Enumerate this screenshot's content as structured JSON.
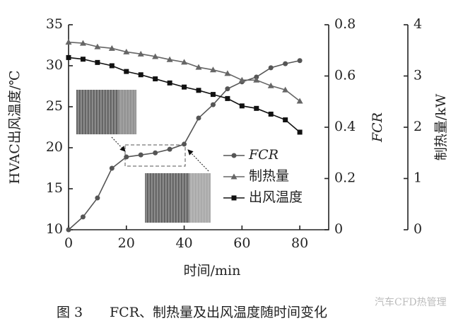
{
  "chart_data": {
    "type": "line",
    "xlabel": "时间/min",
    "ylabel": "HVAC出风温度/℃",
    "y2label": "FCR",
    "y3label": "制热量/kW",
    "x": [
      0,
      5,
      10,
      15,
      20,
      25,
      30,
      35,
      40,
      45,
      50,
      55,
      60,
      65,
      70,
      75,
      80
    ],
    "xlim": [
      0,
      90
    ],
    "xticks": [
      0,
      20,
      40,
      60,
      80
    ],
    "ylim": [
      10,
      35
    ],
    "yticks": [
      10,
      15,
      20,
      25,
      30,
      35
    ],
    "y2lim": [
      0,
      0.8
    ],
    "y2ticks": [
      0,
      0.2,
      0.4,
      0.6,
      0.8
    ],
    "y3lim": [
      0,
      4
    ],
    "y3ticks": [
      0,
      1,
      2,
      3,
      4
    ],
    "series": [
      {
        "name": "FCR",
        "color": "#555555",
        "marker": "circle",
        "axis": "y2",
        "values": [
          0,
          0.05,
          0.124,
          0.24,
          0.284,
          0.292,
          0.3,
          0.314,
          0.334,
          0.436,
          0.488,
          0.55,
          0.577,
          0.596,
          0.632,
          0.648,
          0.66
        ]
      },
      {
        "name": "制热量",
        "color": "#666666",
        "marker": "triangle",
        "axis": "y3",
        "values": [
          3.66,
          3.64,
          3.57,
          3.54,
          3.47,
          3.43,
          3.38,
          3.32,
          3.27,
          3.17,
          3.12,
          3.05,
          2.92,
          2.92,
          2.81,
          2.73,
          2.51
        ]
      },
      {
        "name": "出风温度",
        "color": "#111111",
        "marker": "square",
        "axis": "y",
        "values": [
          31.0,
          30.8,
          30.4,
          30.0,
          29.3,
          28.9,
          28.4,
          27.9,
          27.4,
          27.0,
          26.5,
          26.0,
          25.1,
          24.8,
          24.1,
          23.4,
          21.9
        ]
      }
    ],
    "caption_number": "图 3",
    "caption_title": "FCR、制热量及出风温度随时间变化",
    "watermark": "汽车CFD热管理"
  }
}
